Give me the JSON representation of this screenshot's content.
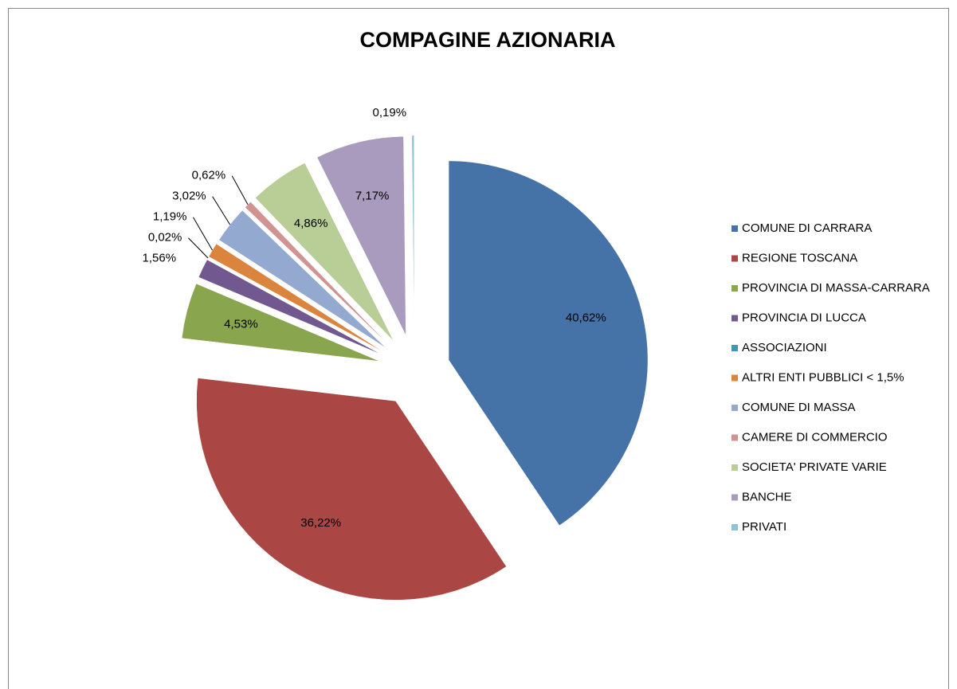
{
  "chart_data": {
    "type": "pie",
    "title": "COMPAGINE AZIONARIA",
    "categories": [
      "COMUNE DI CARRARA",
      "REGIONE TOSCANA",
      "PROVINCIA DI MASSA-CARRARA",
      "PROVINCIA DI LUCCA",
      "ASSOCIAZIONI",
      "ALTRI ENTI PUBBLICI < 1,5%",
      "COMUNE DI MASSA",
      "CAMERE DI COMMERCIO",
      "SOCIETA' PRIVATE  VARIE",
      "BANCHE",
      "PRIVATI"
    ],
    "values": [
      40.62,
      36.22,
      4.53,
      1.56,
      0.02,
      1.19,
      3.02,
      0.62,
      4.86,
      7.17,
      0.19
    ],
    "value_labels": [
      "40,62%",
      "36,22%",
      "4,53%",
      "1,56%",
      "0,02%",
      "1,19%",
      "3,02%",
      "0,62%",
      "4,86%",
      "7,17%",
      "0,19%"
    ],
    "colors": [
      "#4572a7",
      "#aa4643",
      "#89a54e",
      "#71588f",
      "#4198af",
      "#db843d",
      "#93a9cf",
      "#d19392",
      "#b9cd96",
      "#a99bbd",
      "#92c3d5"
    ],
    "legend": "right"
  }
}
